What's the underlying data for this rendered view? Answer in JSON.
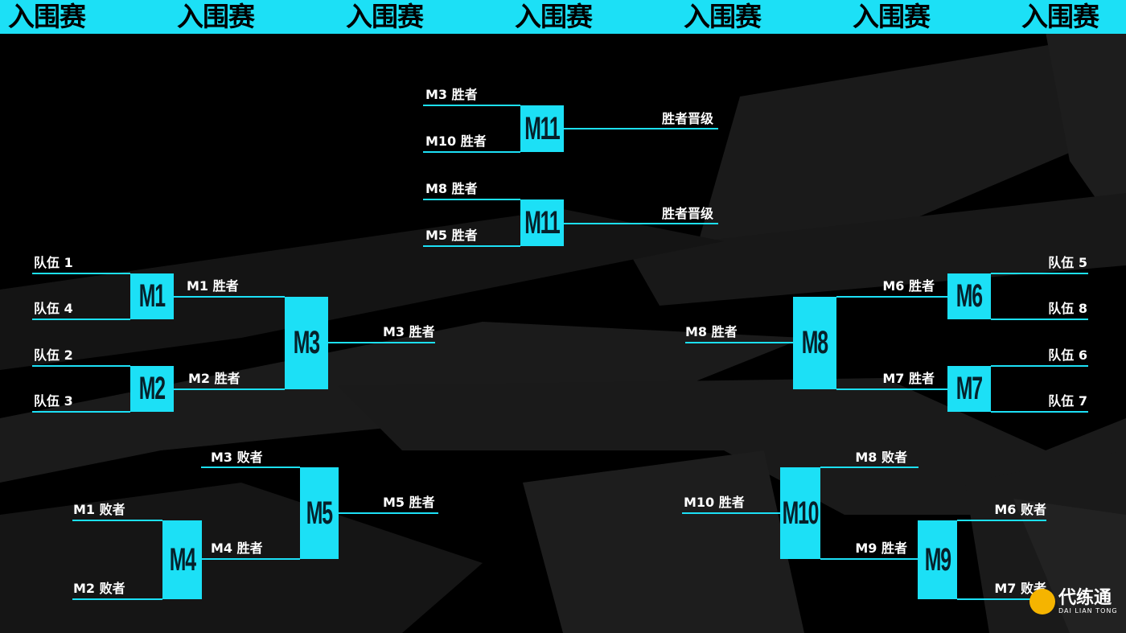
{
  "banner": {
    "title": "入围赛",
    "repeat": 7
  },
  "colors": {
    "accent": "#1ce0f6",
    "background": "#000000",
    "shapes": "#1c1c1c"
  },
  "matches": {
    "m11a": "M11",
    "m11b": "M11",
    "m1": "M1",
    "m2": "M2",
    "m3": "M3",
    "m4": "M4",
    "m5": "M5",
    "m6": "M6",
    "m7": "M7",
    "m8": "M8",
    "m9": "M9",
    "m10": "M10"
  },
  "labels": {
    "m11a_in1": "M3 胜者",
    "m11a_in2": "M10 胜者",
    "m11a_out": "胜者晋级",
    "m11b_in1": "M8 胜者",
    "m11b_in2": "M5 胜者",
    "m11b_out": "胜者晋级",
    "team1": "队伍 1",
    "team4": "队伍 4",
    "team2": "队伍 2",
    "team3": "队伍 3",
    "m1_out": "M1 胜者",
    "m2_out": "M2 胜者",
    "m3_out": "M3 胜者",
    "m5_in1": "M3 败者",
    "m4_out": "M4 胜者",
    "m5_out": "M5 胜者",
    "m4_in1": "M1 败者",
    "m4_in2": "M2 败者",
    "team5": "队伍 5",
    "team8": "队伍 8",
    "team6": "队伍 6",
    "team7": "队伍 7",
    "m6_out": "M6 胜者",
    "m7_out": "M7 胜者",
    "m8_out": "M8 胜者",
    "m10_in1": "M8 败者",
    "m9_out": "M9 胜者",
    "m10_out": "M10 胜者",
    "m9_in1": "M6 败者",
    "m9_in2": "M7 败者"
  },
  "watermark": {
    "name": "代练通",
    "sub": "DAI LIAN TONG"
  }
}
